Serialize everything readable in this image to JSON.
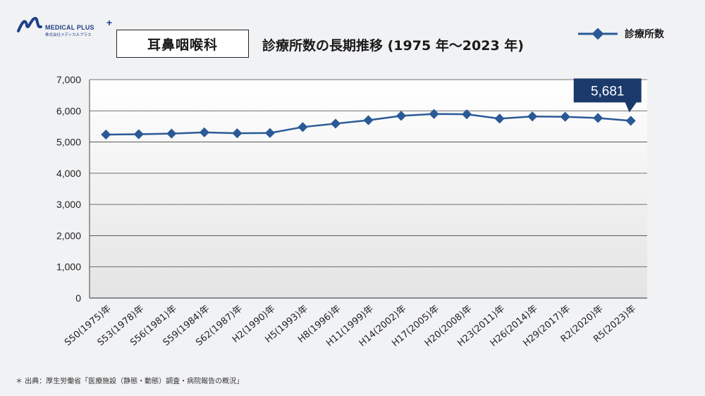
{
  "header": {
    "logo_brand": "MEDICAL PLUS",
    "logo_sub": "株式会社メディカルプラス",
    "department": "耳鼻咽喉科",
    "title": "診療所数の長期推移 (1975 年～2023 年)"
  },
  "source": "＊ 出典：厚生労働省「医療施設（静態・動態）調査・病院報告の概況」",
  "colors": {
    "line": "#2a5a96",
    "callout": "#1b3a6b",
    "grid": "#333333",
    "plot_bg_bottom": "#e6e6e6"
  },
  "chart_data": {
    "type": "line",
    "title": "診療所数の長期推移 (1975 年～2023 年)",
    "xlabel": "",
    "ylabel": "",
    "categories": [
      "S50(1975)年",
      "S53(1978)年",
      "S56(1981)年",
      "S59(1984)年",
      "S62(1987)年",
      "H2(1990)年",
      "H5(1993)年",
      "H8(1996)年",
      "H11(1999)年",
      "H14(2002)年",
      "H17(2005)年",
      "H20(2008)年",
      "H23(2011)年",
      "H26(2014)年",
      "H29(2017)年",
      "R2(2020)年",
      "R5(2023)年"
    ],
    "series": [
      {
        "name": "診療所数",
        "values": [
          5240,
          5250,
          5270,
          5310,
          5280,
          5290,
          5480,
          5590,
          5700,
          5840,
          5900,
          5890,
          5750,
          5820,
          5810,
          5770,
          5681
        ]
      }
    ],
    "ylim": [
      0,
      7000
    ],
    "yticks": [
      0,
      1000,
      2000,
      3000,
      4000,
      5000,
      6000,
      7000
    ],
    "ytick_labels": [
      "0",
      "1,000",
      "2,000",
      "3,000",
      "4,000",
      "5,000",
      "6,000",
      "7,000"
    ],
    "annotation": {
      "index": 16,
      "text": "5,681"
    },
    "legend_position": "top-right",
    "grid": true
  }
}
